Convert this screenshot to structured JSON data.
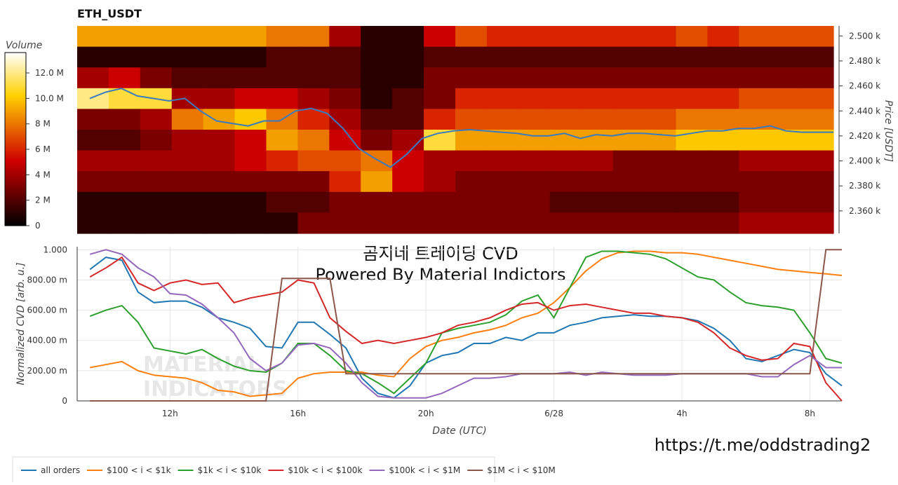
{
  "chart_data": [
    {
      "type": "heatmap",
      "title": "ETH_USDT",
      "ylabel": "Price [USDT]",
      "xlim": [
        9.1,
        33
      ],
      "ylim": [
        2342,
        2508
      ],
      "yticks": [
        {
          "value": 2360,
          "label": "2.360 k"
        },
        {
          "value": 2380,
          "label": "2.380 k"
        },
        {
          "value": 2400,
          "label": "2.400 k"
        },
        {
          "value": 2420,
          "label": "2.420 k"
        },
        {
          "value": 2440,
          "label": "2.440 k"
        },
        {
          "value": 2460,
          "label": "2.460 k"
        },
        {
          "value": 2480,
          "label": "2.480 k"
        },
        {
          "value": 2500,
          "label": "2.500 k"
        }
      ],
      "colorbar": {
        "label": "Volume",
        "lim": [
          0,
          13.6
        ],
        "ticks": [
          0,
          {
            "value": 2,
            "label": "2 M"
          },
          {
            "value": 4,
            "label": "4 M"
          },
          {
            "value": 6,
            "label": "6 M"
          },
          {
            "value": 8,
            "label": "8 M"
          },
          {
            "value": 10,
            "label": "10.0 M"
          },
          {
            "value": 12,
            "label": "12.0 M"
          }
        ]
      },
      "z": [
        [
          9,
          9,
          9,
          9,
          9,
          9,
          8,
          8,
          4,
          1,
          1,
          5,
          7,
          6,
          6,
          6,
          6,
          6,
          6,
          7,
          6,
          7,
          7,
          7
        ],
        [
          1,
          1,
          1,
          1,
          1,
          1,
          2,
          2,
          2,
          1,
          1,
          2,
          2,
          2,
          2,
          2,
          2,
          2,
          2,
          2,
          2,
          2,
          2,
          2
        ],
        [
          4,
          5,
          3,
          2,
          2,
          2,
          2,
          2,
          2,
          1,
          1,
          3,
          3,
          3,
          3,
          3,
          3,
          3,
          3,
          3,
          3,
          3,
          3,
          3
        ],
        [
          12,
          11,
          11,
          4,
          4,
          5,
          5,
          4,
          3,
          1,
          2,
          3,
          6,
          6,
          6,
          6,
          6,
          6,
          6,
          6,
          6,
          7,
          7,
          7
        ],
        [
          3,
          3,
          4,
          8,
          9,
          10,
          8,
          6,
          4,
          2,
          2,
          6,
          7,
          7,
          7,
          7,
          7,
          7,
          7,
          8,
          8,
          8,
          8,
          8
        ],
        [
          2,
          2,
          3,
          4,
          4,
          5,
          9,
          8,
          5,
          3,
          4,
          11,
          9,
          9,
          9,
          9,
          9,
          9,
          9,
          10,
          10,
          10,
          10,
          10
        ],
        [
          4,
          4,
          4,
          4,
          4,
          5,
          6,
          7,
          7,
          8,
          5,
          4,
          4,
          4,
          4,
          4,
          4,
          3,
          3,
          3,
          3,
          4,
          4,
          4
        ],
        [
          3,
          3,
          3,
          3,
          3,
          3,
          3,
          3,
          6,
          9,
          5,
          4,
          3,
          3,
          3,
          3,
          3,
          3,
          3,
          3,
          3,
          3,
          3,
          3
        ],
        [
          1,
          1,
          1,
          1,
          1,
          1,
          2,
          2,
          3,
          3,
          3,
          3,
          3,
          3,
          3,
          2,
          2,
          2,
          2,
          2,
          2,
          3,
          3,
          3
        ],
        [
          1,
          1,
          1,
          1,
          1,
          1,
          1,
          3,
          3,
          3,
          3,
          3,
          3,
          3,
          3,
          3,
          3,
          3,
          3,
          3,
          3,
          4,
          4,
          4
        ]
      ],
      "x": [
        9.5,
        10,
        10.5,
        11,
        11.5,
        12,
        12.5,
        13,
        13.5,
        14,
        14.5,
        15,
        15.5,
        16,
        16.5,
        17,
        17.5,
        18,
        18.5,
        19,
        19.5,
        20,
        20.5,
        21,
        21.5,
        22,
        22.5,
        23,
        23.5,
        24,
        24.5,
        25,
        25.5,
        26,
        26.5,
        27,
        27.5,
        28,
        28.5,
        29,
        29.5,
        30,
        30.5,
        31,
        31.5,
        32,
        32.5,
        33
      ],
      "price_line": {
        "color": "#3a7bbf",
        "values": [
          2450,
          2455,
          2458,
          2452,
          2450,
          2448,
          2450,
          2440,
          2432,
          2430,
          2428,
          2432,
          2432,
          2440,
          2442,
          2438,
          2426,
          2410,
          2402,
          2395,
          2405,
          2418,
          2422,
          2424,
          2425,
          2424,
          2423,
          2422,
          2420,
          2420,
          2422,
          2418,
          2421,
          2420,
          2422,
          2422,
          2421,
          2420,
          2422,
          2424,
          2424,
          2426,
          2426,
          2428,
          2424,
          2423,
          2423,
          2423
        ]
      }
    },
    {
      "type": "line",
      "title": "곰지네 트레이딩 CVD",
      "subtitle": "Powered By Material Indictors",
      "xlabel": "Date (UTC)",
      "ylabel": "Normalized CVD [arb. u.]",
      "watermark": [
        "MATERIAL",
        "INDICATORS"
      ],
      "xlim": [
        9.1,
        33
      ],
      "ylim": [
        0,
        1.02
      ],
      "grid": true,
      "legend": "bottom-left",
      "xticks": [
        {
          "value": 12,
          "label": "12h"
        },
        {
          "value": 16,
          "label": "16h"
        },
        {
          "value": 20,
          "label": "20h"
        },
        {
          "value": 24,
          "label": "6/28"
        },
        {
          "value": 28,
          "label": "4h"
        },
        {
          "value": 32,
          "label": "8h"
        }
      ],
      "yticks": [
        0,
        {
          "value": 0.2,
          "label": "200.00 m"
        },
        {
          "value": 0.4,
          "label": "400.00 m"
        },
        {
          "value": 0.6,
          "label": "600.00 m"
        },
        {
          "value": 0.8,
          "label": "800.00 m"
        },
        {
          "value": 1,
          "label": "1.000"
        }
      ],
      "x": [
        9.5,
        10,
        10.5,
        11,
        11.5,
        12,
        12.5,
        13,
        13.5,
        14,
        14.5,
        15,
        15.5,
        16,
        16.5,
        17,
        17.5,
        18,
        18.5,
        19,
        19.5,
        20,
        20.5,
        21,
        21.5,
        22,
        22.5,
        23,
        23.5,
        24,
        24.5,
        25,
        25.5,
        26,
        26.5,
        27,
        27.5,
        28,
        28.5,
        29,
        29.5,
        30,
        30.5,
        31,
        31.5,
        32,
        32.5,
        33
      ],
      "series": [
        {
          "name": "all orders",
          "color": "#1f77b4",
          "values": [
            0.87,
            0.95,
            0.93,
            0.72,
            0.65,
            0.66,
            0.66,
            0.62,
            0.55,
            0.52,
            0.48,
            0.36,
            0.35,
            0.52,
            0.52,
            0.44,
            0.35,
            0.15,
            0.05,
            0.02,
            0.1,
            0.25,
            0.3,
            0.32,
            0.38,
            0.38,
            0.42,
            0.4,
            0.45,
            0.45,
            0.5,
            0.52,
            0.55,
            0.56,
            0.57,
            0.56,
            0.56,
            0.55,
            0.53,
            0.48,
            0.4,
            0.28,
            0.26,
            0.3,
            0.34,
            0.32,
            0.18,
            0.1
          ]
        },
        {
          "name": "$100 < i < $1k",
          "color": "#ff7f0e",
          "values": [
            0.22,
            0.24,
            0.26,
            0.2,
            0.17,
            0.16,
            0.15,
            0.12,
            0.07,
            0.06,
            0.03,
            0.04,
            0.05,
            0.15,
            0.18,
            0.19,
            0.19,
            0.19,
            0.17,
            0.16,
            0.28,
            0.36,
            0.4,
            0.42,
            0.45,
            0.47,
            0.5,
            0.55,
            0.58,
            0.65,
            0.75,
            0.86,
            0.94,
            0.98,
            0.99,
            0.99,
            0.98,
            0.98,
            0.97,
            0.95,
            0.93,
            0.91,
            0.89,
            0.87,
            0.86,
            0.85,
            0.84,
            0.83
          ]
        },
        {
          "name": "$1k < i < $10k",
          "color": "#2ca02c",
          "values": [
            0.56,
            0.6,
            0.63,
            0.52,
            0.35,
            0.33,
            0.31,
            0.34,
            0.28,
            0.23,
            0.2,
            0.19,
            0.25,
            0.38,
            0.38,
            0.3,
            0.2,
            0.18,
            0.12,
            0.05,
            0.15,
            0.25,
            0.45,
            0.48,
            0.5,
            0.52,
            0.57,
            0.66,
            0.7,
            0.55,
            0.75,
            0.95,
            0.99,
            0.99,
            0.98,
            0.97,
            0.94,
            0.88,
            0.82,
            0.8,
            0.72,
            0.65,
            0.63,
            0.62,
            0.6,
            0.45,
            0.28,
            0.25
          ]
        },
        {
          "name": "$10k < i < $100k",
          "color": "#d62728",
          "values": [
            0.82,
            0.88,
            0.95,
            0.78,
            0.73,
            0.78,
            0.8,
            0.77,
            0.78,
            0.65,
            0.68,
            0.7,
            0.72,
            0.8,
            0.78,
            0.55,
            0.46,
            0.38,
            0.4,
            0.38,
            0.4,
            0.42,
            0.45,
            0.5,
            0.52,
            0.55,
            0.6,
            0.64,
            0.65,
            0.6,
            0.63,
            0.64,
            0.62,
            0.6,
            0.58,
            0.58,
            0.56,
            0.55,
            0.52,
            0.45,
            0.35,
            0.3,
            0.27,
            0.28,
            0.38,
            0.36,
            0.12,
            0
          ]
        },
        {
          "name": "$100k < i < $1M",
          "color": "#9467bd",
          "values": [
            0.97,
            1,
            0.97,
            0.88,
            0.82,
            0.71,
            0.7,
            0.64,
            0.55,
            0.45,
            0.28,
            0.2,
            0.25,
            0.37,
            0.38,
            0.35,
            0.25,
            0.12,
            0.03,
            0.02,
            0.02,
            0.02,
            0.05,
            0.1,
            0.15,
            0.15,
            0.16,
            0.18,
            0.18,
            0.18,
            0.19,
            0.17,
            0.19,
            0.18,
            0.17,
            0.17,
            0.17,
            0.18,
            0.18,
            0.18,
            0.18,
            0.18,
            0.16,
            0.16,
            0.24,
            0.3,
            0.22,
            0.22
          ]
        },
        {
          "name": "$1M < i < $10M",
          "color": "#8c564b",
          "values": [
            0,
            0,
            0,
            0,
            0,
            0,
            0,
            0,
            0,
            0,
            0,
            0,
            0.81,
            0.81,
            0.81,
            0.81,
            0.18,
            0.18,
            0.18,
            0.18,
            0.18,
            0.18,
            0.18,
            0.18,
            0.18,
            0.18,
            0.18,
            0.18,
            0.18,
            0.18,
            0.18,
            0.18,
            0.18,
            0.18,
            0.18,
            0.18,
            0.18,
            0.18,
            0.18,
            0.18,
            0.18,
            0.18,
            0.18,
            0.18,
            0.18,
            0.18,
            1,
            1
          ]
        }
      ]
    }
  ],
  "link": "https://t.me/oddstrading2"
}
